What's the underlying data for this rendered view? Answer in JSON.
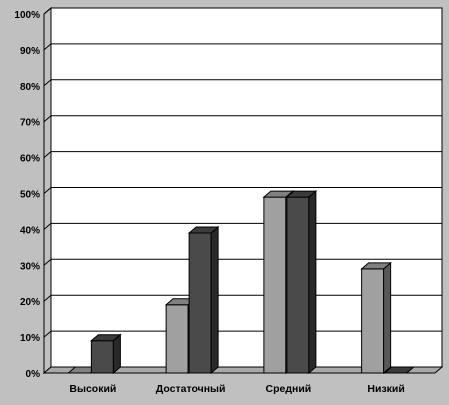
{
  "chart_data": {
    "type": "bar",
    "categories": [
      "Высокий",
      "Достаточный",
      "Средний",
      "Низкий"
    ],
    "series": [
      {
        "values": [
          0,
          19,
          49,
          29
        ]
      },
      {
        "values": [
          9,
          39,
          49,
          0
        ]
      }
    ],
    "ylim": [
      0,
      100
    ],
    "yticks": [
      "0%",
      "10%",
      "20%",
      "30%",
      "40%",
      "50%",
      "60%",
      "70%",
      "80%",
      "90%",
      "100%"
    ],
    "grid": true,
    "legend": "none",
    "colors": {
      "page_bg": "#c0c0c0",
      "plot_bg": "#ffffff",
      "floor": "#a9a9a9",
      "series_light": "#a0a0a0",
      "series_dark": "#4a4a4a",
      "grid": "#000000"
    }
  }
}
